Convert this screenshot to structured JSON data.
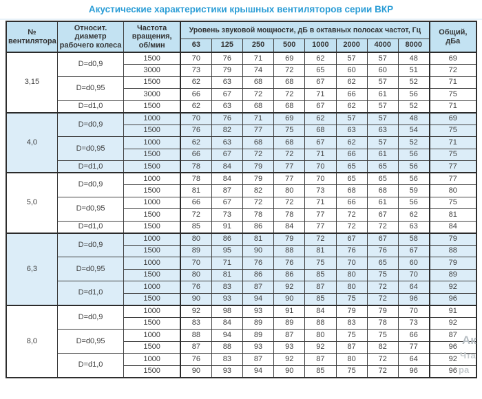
{
  "title": "Акустические характеристики крышных вентиляторов серии ВКР",
  "colors": {
    "title_blue": "#2b9dd6",
    "header_bg": "#c3e2f2",
    "shaded_group_bg": "#dcedf8",
    "grid_border": "#3c3c3c",
    "text": "#3e3e3e",
    "watermark_gray": "#b7bec3"
  },
  "watermark": {
    "fragments": [
      "Ак",
      "Чта",
      "ра"
    ]
  },
  "table": {
    "headers": {
      "fan_no": "№ вентилятора",
      "diameter": "Относит. диаметр рабочего колеса",
      "speed": "Частота вращения, об/мин",
      "spl_group": "Уровень звуковой мощности, дБ в октавных полосах частот, Гц",
      "frequencies": [
        "63",
        "125",
        "250",
        "500",
        "1000",
        "2000",
        "4000",
        "8000"
      ],
      "total": "Общий, дБа"
    },
    "groups": [
      {
        "fan": "3,15",
        "shaded": false,
        "diameters": [
          {
            "label": "D=d0,9",
            "rows": [
              {
                "rpm": "1500",
                "values": [
                  70,
                  76,
                  71,
                  69,
                  62,
                  57,
                  57,
                  48
                ],
                "total": 69
              },
              {
                "rpm": "3000",
                "values": [
                  73,
                  79,
                  74,
                  72,
                  65,
                  60,
                  60,
                  51
                ],
                "total": 72
              }
            ]
          },
          {
            "label": "D=d0,95",
            "rows": [
              {
                "rpm": "1500",
                "values": [
                  62,
                  63,
                  68,
                  68,
                  67,
                  62,
                  57,
                  52
                ],
                "total": 71
              },
              {
                "rpm": "3000",
                "values": [
                  66,
                  67,
                  72,
                  72,
                  71,
                  66,
                  61,
                  56
                ],
                "total": 75
              }
            ]
          },
          {
            "label": "D=d1,0",
            "rows": [
              {
                "rpm": "1500",
                "values": [
                  62,
                  63,
                  68,
                  68,
                  67,
                  62,
                  57,
                  52
                ],
                "total": 71
              }
            ]
          }
        ]
      },
      {
        "fan": "4,0",
        "shaded": true,
        "diameters": [
          {
            "label": "D=d0,9",
            "rows": [
              {
                "rpm": "1000",
                "values": [
                  70,
                  76,
                  71,
                  69,
                  62,
                  57,
                  57,
                  48
                ],
                "total": 69
              },
              {
                "rpm": "1500",
                "values": [
                  76,
                  82,
                  77,
                  75,
                  68,
                  63,
                  63,
                  54
                ],
                "total": 75
              }
            ]
          },
          {
            "label": "D=d0,95",
            "rows": [
              {
                "rpm": "1000",
                "values": [
                  62,
                  63,
                  68,
                  68,
                  67,
                  62,
                  57,
                  52
                ],
                "total": 71
              },
              {
                "rpm": "1500",
                "values": [
                  66,
                  67,
                  72,
                  72,
                  71,
                  66,
                  61,
                  56
                ],
                "total": 75
              }
            ]
          },
          {
            "label": "D=d1,0",
            "rows": [
              {
                "rpm": "1500",
                "values": [
                  78,
                  84,
                  79,
                  77,
                  70,
                  65,
                  65,
                  56
                ],
                "total": 77
              }
            ]
          }
        ]
      },
      {
        "fan": "5,0",
        "shaded": false,
        "diameters": [
          {
            "label": "D=d0,9",
            "rows": [
              {
                "rpm": "1000",
                "values": [
                  78,
                  84,
                  79,
                  77,
                  70,
                  65,
                  65,
                  56
                ],
                "total": 77
              },
              {
                "rpm": "1500",
                "values": [
                  81,
                  87,
                  82,
                  80,
                  73,
                  68,
                  68,
                  59
                ],
                "total": 80
              }
            ]
          },
          {
            "label": "D=d0,95",
            "rows": [
              {
                "rpm": "1000",
                "values": [
                  66,
                  67,
                  72,
                  72,
                  71,
                  66,
                  61,
                  56
                ],
                "total": 75
              },
              {
                "rpm": "1500",
                "values": [
                  72,
                  73,
                  78,
                  78,
                  77,
                  72,
                  67,
                  62
                ],
                "total": 81
              }
            ]
          },
          {
            "label": "D=d1,0",
            "rows": [
              {
                "rpm": "1500",
                "values": [
                  85,
                  91,
                  86,
                  84,
                  77,
                  72,
                  72,
                  63
                ],
                "total": 84
              }
            ]
          }
        ]
      },
      {
        "fan": "6,3",
        "shaded": true,
        "diameters": [
          {
            "label": "D=d0,9",
            "rows": [
              {
                "rpm": "1000",
                "values": [
                  80,
                  86,
                  81,
                  79,
                  72,
                  67,
                  67,
                  58
                ],
                "total": 79
              },
              {
                "rpm": "1500",
                "values": [
                  89,
                  95,
                  90,
                  88,
                  81,
                  76,
                  76,
                  67
                ],
                "total": 88
              }
            ]
          },
          {
            "label": "D=d0,95",
            "rows": [
              {
                "rpm": "1000",
                "values": [
                  70,
                  71,
                  76,
                  76,
                  75,
                  70,
                  65,
                  60
                ],
                "total": 79
              },
              {
                "rpm": "1500",
                "values": [
                  80,
                  81,
                  86,
                  86,
                  85,
                  80,
                  75,
                  70
                ],
                "total": 89
              }
            ]
          },
          {
            "label": "D=d1,0",
            "rows": [
              {
                "rpm": "1000",
                "values": [
                  76,
                  83,
                  87,
                  92,
                  87,
                  80,
                  72,
                  64
                ],
                "total": 92
              },
              {
                "rpm": "1500",
                "values": [
                  90,
                  93,
                  94,
                  90,
                  85,
                  75,
                  72,
                  96
                ],
                "total": 96
              }
            ]
          }
        ]
      },
      {
        "fan": "8,0",
        "shaded": false,
        "diameters": [
          {
            "label": "D=d0,9",
            "rows": [
              {
                "rpm": "1000",
                "values": [
                  92,
                  98,
                  93,
                  91,
                  84,
                  79,
                  79,
                  70
                ],
                "total": 91
              },
              {
                "rpm": "1500",
                "values": [
                  83,
                  84,
                  89,
                  89,
                  88,
                  83,
                  78,
                  73
                ],
                "total": 92
              }
            ]
          },
          {
            "label": "D=d0,95",
            "rows": [
              {
                "rpm": "1000",
                "values": [
                  88,
                  94,
                  89,
                  87,
                  80,
                  75,
                  75,
                  66
                ],
                "total": 87
              },
              {
                "rpm": "1500",
                "values": [
                  87,
                  88,
                  93,
                  93,
                  92,
                  87,
                  82,
                  77
                ],
                "total": 96
              }
            ]
          },
          {
            "label": "D=d1,0",
            "rows": [
              {
                "rpm": "1000",
                "values": [
                  76,
                  83,
                  87,
                  92,
                  87,
                  80,
                  72,
                  64
                ],
                "total": 92
              },
              {
                "rpm": "1500",
                "values": [
                  90,
                  93,
                  94,
                  90,
                  85,
                  75,
                  72,
                  96
                ],
                "total": 96
              }
            ]
          }
        ]
      }
    ]
  }
}
